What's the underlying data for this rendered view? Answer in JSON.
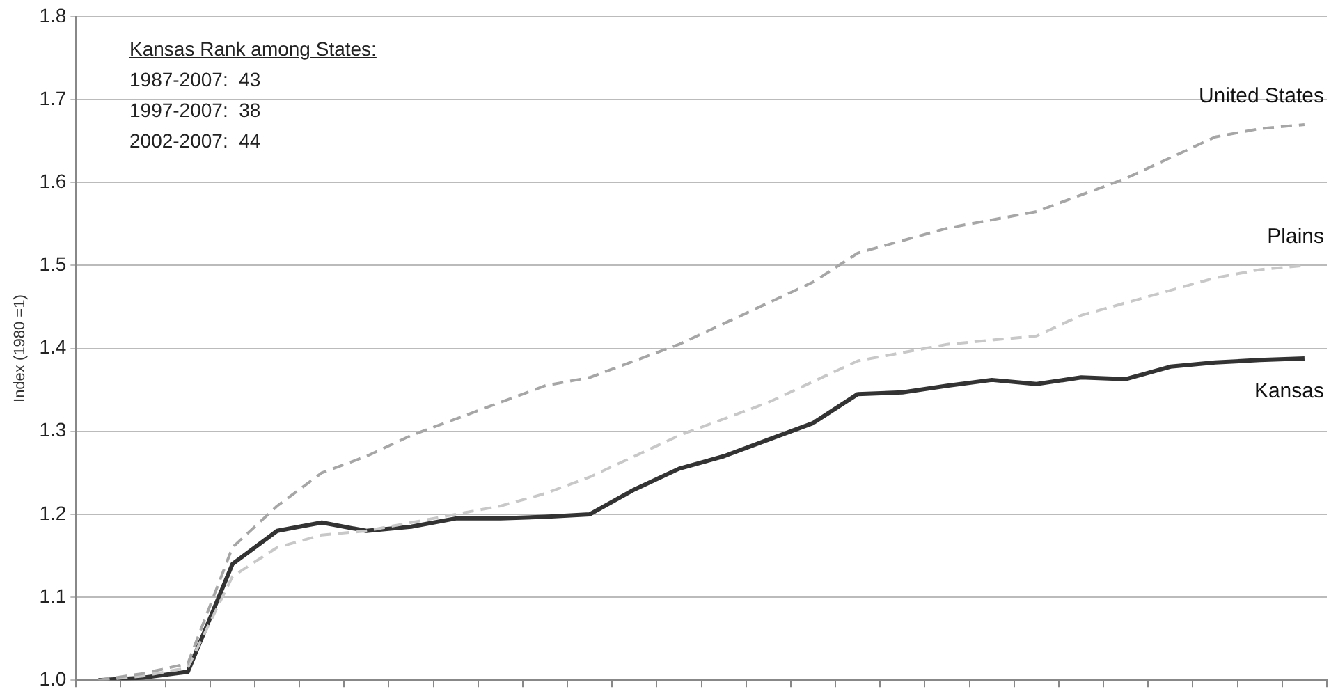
{
  "chart_data": {
    "type": "line",
    "ylabel": "Index (1980 =1)",
    "categories": [
      null,
      null,
      null,
      null,
      null,
      null,
      null,
      null,
      null,
      null,
      null,
      null,
      null,
      null,
      null,
      null,
      null,
      null,
      null,
      null,
      null,
      null,
      null,
      null,
      null,
      null,
      null,
      null
    ],
    "series": [
      {
        "name": "United States",
        "color": "#a6a6a6",
        "line_style": "dashed",
        "values": [
          1.0,
          1.008,
          1.02,
          1.16,
          1.21,
          1.25,
          1.27,
          1.295,
          1.315,
          1.335,
          1.355,
          1.365,
          1.385,
          1.405,
          1.43,
          1.455,
          1.48,
          1.515,
          1.53,
          1.545,
          1.555,
          1.565,
          1.585,
          1.605,
          1.63,
          1.655,
          1.665,
          1.67
        ]
      },
      {
        "name": "Plains",
        "color": "#c8c8c8",
        "line_style": "dashed",
        "values": [
          1.0,
          1.005,
          1.015,
          1.125,
          1.16,
          1.175,
          1.18,
          1.19,
          1.2,
          1.21,
          1.225,
          1.245,
          1.27,
          1.295,
          1.315,
          1.335,
          1.36,
          1.385,
          1.395,
          1.405,
          1.41,
          1.415,
          1.44,
          1.455,
          1.47,
          1.485,
          1.495,
          1.5
        ]
      },
      {
        "name": "Kansas",
        "color": "#333333",
        "line_style": "solid",
        "values": [
          1.0,
          1.003,
          1.01,
          1.14,
          1.18,
          1.19,
          1.18,
          1.185,
          1.195,
          1.195,
          1.197,
          1.2,
          1.23,
          1.255,
          1.27,
          1.29,
          1.31,
          1.345,
          1.347,
          1.355,
          1.362,
          1.357,
          1.365,
          1.363,
          1.378,
          1.383,
          1.386,
          1.388
        ]
      }
    ],
    "ylim": [
      1.0,
      1.8
    ],
    "yticks": [
      {
        "value": 1.0,
        "label": "1.0"
      },
      1.1,
      1.2,
      1.3,
      1.4,
      1.5,
      1.6,
      1.7,
      1.8
    ],
    "grid": "y",
    "tick_labels": "y",
    "marker": "none",
    "annotations": [
      "Kansas Rank among States:",
      "1987-2007:  43",
      "1997-2007:  38",
      "2002-2007:  44"
    ]
  }
}
